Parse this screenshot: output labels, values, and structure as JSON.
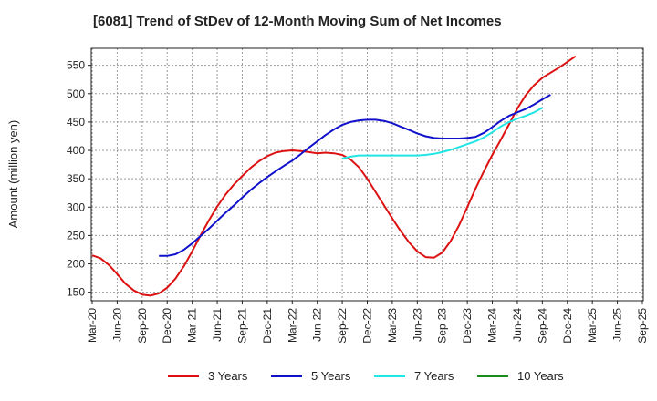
{
  "chart_data": {
    "type": "line",
    "title": "[6081]  Trend of StDev of 12-Month Moving Sum of Net Incomes",
    "ylabel": "Amount (million yen)",
    "xlabel": "",
    "x_categories": [
      "Mar-20",
      "Jun-20",
      "Sep-20",
      "Dec-20",
      "Mar-21",
      "Jun-21",
      "Sep-21",
      "Dec-21",
      "Mar-22",
      "Jun-22",
      "Sep-22",
      "Dec-22",
      "Mar-23",
      "Jun-23",
      "Sep-23",
      "Dec-23",
      "Mar-24",
      "Jun-24",
      "Sep-24",
      "Dec-24",
      "Mar-25",
      "Jun-25",
      "Sep-25"
    ],
    "ylim": [
      135,
      580
    ],
    "yticks": [
      150,
      200,
      250,
      300,
      350,
      400,
      450,
      500,
      550
    ],
    "grid": true,
    "legend_position": "bottom",
    "series": [
      {
        "name": "3 Years",
        "color": "#dd1111",
        "points": [
          [
            0,
            215
          ],
          [
            0.33,
            210
          ],
          [
            0.67,
            198
          ],
          [
            1,
            182
          ],
          [
            1.33,
            165
          ],
          [
            1.67,
            153
          ],
          [
            2,
            146
          ],
          [
            2.33,
            144
          ],
          [
            2.67,
            148
          ],
          [
            3,
            158
          ],
          [
            3.33,
            174
          ],
          [
            3.67,
            196
          ],
          [
            4,
            222
          ],
          [
            4.33,
            250
          ],
          [
            4.67,
            277
          ],
          [
            5,
            301
          ],
          [
            5.33,
            322
          ],
          [
            5.67,
            340
          ],
          [
            6,
            355
          ],
          [
            6.33,
            369
          ],
          [
            6.67,
            381
          ],
          [
            7,
            390
          ],
          [
            7.33,
            396
          ],
          [
            7.67,
            399
          ],
          [
            8,
            400
          ],
          [
            8.33,
            399
          ],
          [
            8.67,
            397
          ],
          [
            9,
            395
          ],
          [
            9.33,
            396
          ],
          [
            9.67,
            395
          ],
          [
            10,
            392
          ],
          [
            10.33,
            384
          ],
          [
            10.67,
            370
          ],
          [
            11,
            350
          ],
          [
            11.33,
            327
          ],
          [
            11.67,
            303
          ],
          [
            12,
            280
          ],
          [
            12.33,
            258
          ],
          [
            12.67,
            238
          ],
          [
            13,
            222
          ],
          [
            13.33,
            212
          ],
          [
            13.67,
            211
          ],
          [
            14,
            220
          ],
          [
            14.33,
            240
          ],
          [
            14.67,
            268
          ],
          [
            15,
            300
          ],
          [
            15.33,
            333
          ],
          [
            15.67,
            364
          ],
          [
            16,
            392
          ],
          [
            16.33,
            418
          ],
          [
            16.67,
            446
          ],
          [
            17,
            474
          ],
          [
            17.33,
            497
          ],
          [
            17.67,
            515
          ],
          [
            18,
            528
          ],
          [
            18.33,
            537
          ],
          [
            18.67,
            546
          ],
          [
            19,
            556
          ],
          [
            19.33,
            566
          ]
        ]
      },
      {
        "name": "5 Years",
        "color": "#1111cc",
        "points": [
          [
            2.67,
            214
          ],
          [
            3,
            214
          ],
          [
            3.33,
            217
          ],
          [
            3.67,
            225
          ],
          [
            4,
            236
          ],
          [
            4.33,
            249
          ],
          [
            4.67,
            262
          ],
          [
            5,
            276
          ],
          [
            5.33,
            290
          ],
          [
            5.67,
            303
          ],
          [
            6,
            317
          ],
          [
            6.33,
            330
          ],
          [
            6.67,
            342
          ],
          [
            7,
            353
          ],
          [
            7.33,
            363
          ],
          [
            7.67,
            373
          ],
          [
            8,
            382
          ],
          [
            8.33,
            393
          ],
          [
            8.67,
            405
          ],
          [
            9,
            416
          ],
          [
            9.33,
            427
          ],
          [
            9.67,
            437
          ],
          [
            10,
            445
          ],
          [
            10.33,
            450
          ],
          [
            10.67,
            453
          ],
          [
            11,
            454
          ],
          [
            11.33,
            454
          ],
          [
            11.67,
            452
          ],
          [
            12,
            448
          ],
          [
            12.33,
            442
          ],
          [
            12.67,
            436
          ],
          [
            13,
            430
          ],
          [
            13.33,
            425
          ],
          [
            13.67,
            422
          ],
          [
            14,
            421
          ],
          [
            14.33,
            421
          ],
          [
            14.67,
            421
          ],
          [
            15,
            422
          ],
          [
            15.33,
            424
          ],
          [
            15.67,
            431
          ],
          [
            16,
            441
          ],
          [
            16.33,
            452
          ],
          [
            16.67,
            461
          ],
          [
            17,
            467
          ],
          [
            17.33,
            473
          ],
          [
            17.67,
            481
          ],
          [
            18,
            490
          ],
          [
            18.33,
            498
          ]
        ]
      },
      {
        "name": "7 Years",
        "color": "#22e5e5",
        "points": [
          [
            10,
            386
          ],
          [
            10.33,
            389
          ],
          [
            10.67,
            391
          ],
          [
            11,
            391
          ],
          [
            11.33,
            391
          ],
          [
            11.67,
            391
          ],
          [
            12,
            391
          ],
          [
            12.33,
            391
          ],
          [
            12.67,
            391
          ],
          [
            13,
            391
          ],
          [
            13.33,
            392
          ],
          [
            13.67,
            394
          ],
          [
            14,
            397
          ],
          [
            14.33,
            401
          ],
          [
            14.67,
            406
          ],
          [
            15,
            411
          ],
          [
            15.33,
            416
          ],
          [
            15.67,
            423
          ],
          [
            16,
            432
          ],
          [
            16.33,
            442
          ],
          [
            16.67,
            450
          ],
          [
            17,
            456
          ],
          [
            17.33,
            461
          ],
          [
            17.67,
            467
          ],
          [
            18,
            475
          ]
        ]
      },
      {
        "name": "10 Years",
        "color": "#1a8c1a",
        "points": []
      }
    ]
  }
}
